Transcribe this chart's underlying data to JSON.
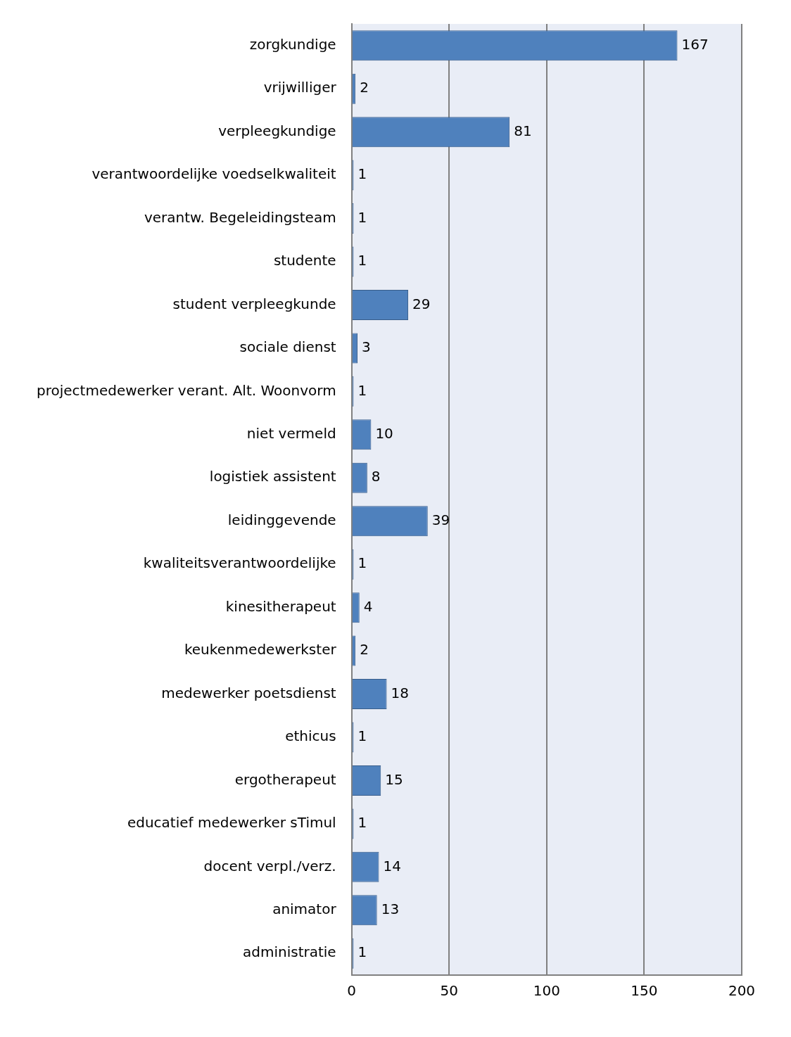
{
  "chart_data": {
    "type": "bar",
    "orientation": "horizontal",
    "categories": [
      "zorgkundige",
      "vrijwilliger",
      "verpleegkundige",
      "verantwoordelijke voedselkwaliteit",
      "verantw. Begeleidingsteam",
      "studente",
      "student verpleegkunde",
      "sociale dienst",
      "projectmedewerker verant. Alt. Woonvorm",
      "niet vermeld",
      "logistiek assistent",
      "leidinggevende",
      "kwaliteitsverantwoordelijke",
      "kinesitherapeut",
      "keukenmedewerkster",
      "medewerker poetsdienst",
      "ethicus",
      "ergotherapeut",
      "educatief medewerker sTimul",
      "docent verpl./verz.",
      "animator",
      "administratie"
    ],
    "values": [
      167,
      2,
      81,
      1,
      1,
      1,
      29,
      3,
      1,
      10,
      8,
      39,
      1,
      4,
      2,
      18,
      1,
      15,
      1,
      14,
      13,
      1
    ],
    "color": "#4f81bd",
    "xlim": [
      0,
      200
    ],
    "xticks": [
      0,
      50,
      100,
      150,
      200
    ],
    "grid": "x",
    "data_labels": true,
    "legend": false
  }
}
